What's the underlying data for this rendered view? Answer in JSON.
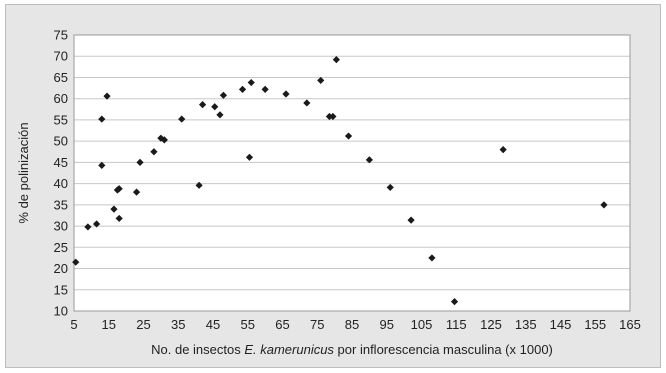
{
  "chart_data": {
    "type": "scatter",
    "title": "",
    "xlabel": {
      "before": "No. de insectos ",
      "italic": "E. kamerunicus",
      "after": " por inflorescencia masculina (x 1000)"
    },
    "ylabel": "% de polinización",
    "xlim": [
      5,
      165
    ],
    "ylim": [
      10,
      75
    ],
    "xticks": [
      5,
      15,
      25,
      35,
      45,
      55,
      65,
      75,
      85,
      95,
      105,
      115,
      125,
      135,
      145,
      155,
      165
    ],
    "yticks": [
      10,
      15,
      20,
      25,
      30,
      35,
      40,
      45,
      50,
      55,
      60,
      65,
      70,
      75
    ],
    "grid": "horizontal",
    "legend": "none",
    "marker_color": "#1a1a1a",
    "points": [
      [
        5.5,
        21.5
      ],
      [
        9,
        29.8
      ],
      [
        11.5,
        30.5
      ],
      [
        13,
        55.2
      ],
      [
        13,
        44.3
      ],
      [
        14.5,
        60.6
      ],
      [
        16.5,
        34
      ],
      [
        17.5,
        38.5
      ],
      [
        18,
        38.8
      ],
      [
        18,
        31.8
      ],
      [
        23,
        38
      ],
      [
        24,
        45
      ],
      [
        28,
        47.5
      ],
      [
        30,
        50.7
      ],
      [
        31,
        50.3
      ],
      [
        36,
        55.2
      ],
      [
        41,
        39.6
      ],
      [
        42,
        58.6
      ],
      [
        45.5,
        58.1
      ],
      [
        47,
        56.2
      ],
      [
        48,
        60.8
      ],
      [
        53.5,
        62.2
      ],
      [
        55.5,
        46.2
      ],
      [
        56,
        63.8
      ],
      [
        60,
        62.2
      ],
      [
        66,
        61.1
      ],
      [
        72,
        59
      ],
      [
        76,
        64.3
      ],
      [
        78.5,
        55.8
      ],
      [
        79.5,
        55.8
      ],
      [
        80.5,
        69.2
      ],
      [
        84,
        51.2
      ],
      [
        90,
        45.6
      ],
      [
        96,
        39.1
      ],
      [
        102,
        31.4
      ],
      [
        108,
        22.5
      ],
      [
        114.5,
        12.2
      ],
      [
        128.5,
        48
      ],
      [
        157.5,
        35
      ]
    ]
  }
}
